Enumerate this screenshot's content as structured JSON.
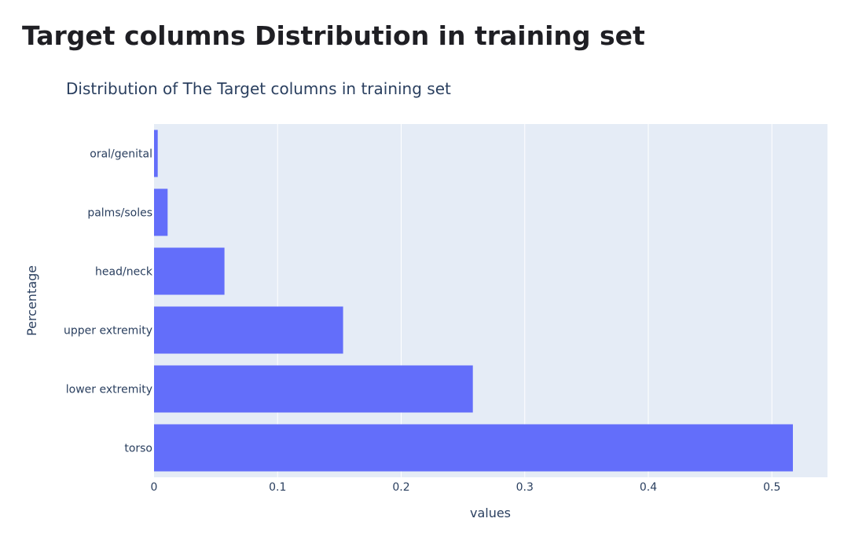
{
  "page": {
    "heading": "Target columns Distribution in training set"
  },
  "chart_data": {
    "type": "bar",
    "orientation": "horizontal",
    "title": "Distribution of The Target columns in training set",
    "xlabel": "values",
    "ylabel": "Percentage",
    "categories": [
      "torso",
      "lower extremity",
      "upper extremity",
      "head/neck",
      "palms/soles",
      "oral/genital"
    ],
    "values": [
      0.517,
      0.258,
      0.153,
      0.057,
      0.011,
      0.003
    ],
    "xlim": [
      0,
      0.545
    ],
    "x_ticks": [
      0,
      0.1,
      0.2,
      0.3,
      0.4,
      0.5
    ],
    "x_tick_labels": [
      "0",
      "0.1",
      "0.2",
      "0.3",
      "0.4",
      "0.5"
    ],
    "grid": true,
    "bar_color": "#636efa",
    "plot_background": "#e5ecf6",
    "gridline_color": "#ffffff"
  }
}
